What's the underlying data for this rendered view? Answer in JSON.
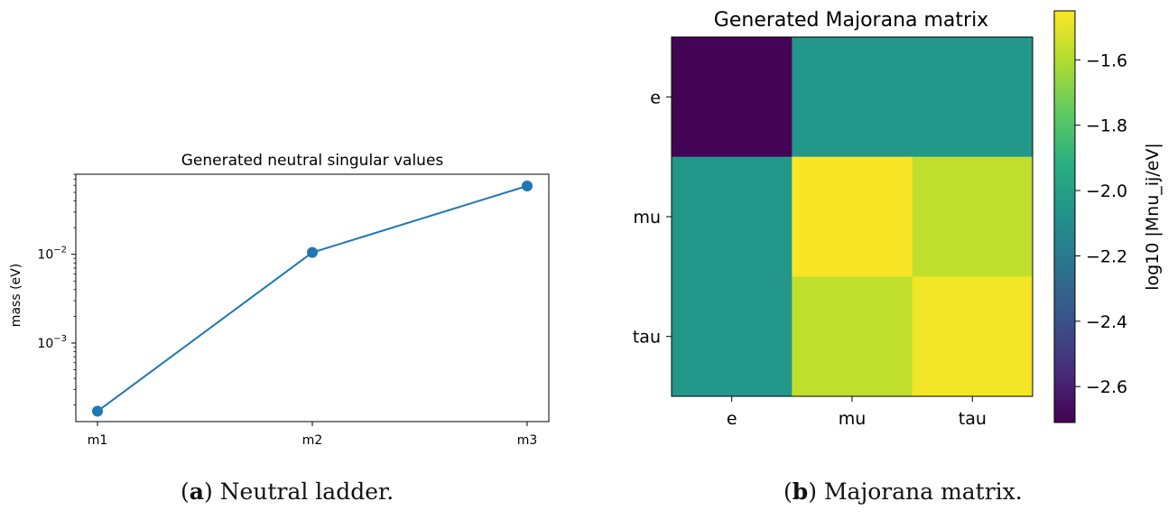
{
  "chart_data": [
    {
      "type": "line",
      "title": "Generated neutral singular values",
      "xlabel": "",
      "ylabel": "mass (eV)",
      "yscale": "log",
      "ylim": [
        0.00013,
        0.08
      ],
      "categories": [
        "m1",
        "m2",
        "m3"
      ],
      "series": [
        {
          "values": [
            0.00017,
            0.0105,
            0.059
          ],
          "color": "#1f77b4"
        }
      ],
      "yticks": [
        {
          "value": 0.001,
          "base": "10",
          "exp": "−3"
        },
        {
          "value": 0.01,
          "base": "10",
          "exp": "−2"
        }
      ],
      "grid": false,
      "legend": "none"
    },
    {
      "type": "heatmap",
      "title": "Generated Majorana matrix",
      "xlabel": "",
      "ylabel": "",
      "x_categories": [
        "e",
        "mu",
        "tau"
      ],
      "y_categories": [
        "e",
        "mu",
        "tau"
      ],
      "values": [
        [
          -2.7,
          -2.05,
          -2.05
        ],
        [
          -2.05,
          -1.46,
          -1.57
        ],
        [
          -2.05,
          -1.57,
          -1.47
        ]
      ],
      "colormap": "viridis",
      "colorbar": {
        "label": "log10 |Mnu_ij/eV|",
        "range": [
          -2.71,
          -1.45
        ],
        "ticks": [
          -1.6,
          -1.8,
          -2.0,
          -2.2,
          -2.4,
          -2.6
        ],
        "tick_labels": [
          "−1.6",
          "−1.8",
          "−2.0",
          "−2.2",
          "−2.4",
          "−2.6"
        ]
      }
    }
  ],
  "captions": {
    "a": {
      "tag": "a",
      "text": " Neutral ladder."
    },
    "b": {
      "tag": "b",
      "text": " Majorana matrix."
    }
  }
}
